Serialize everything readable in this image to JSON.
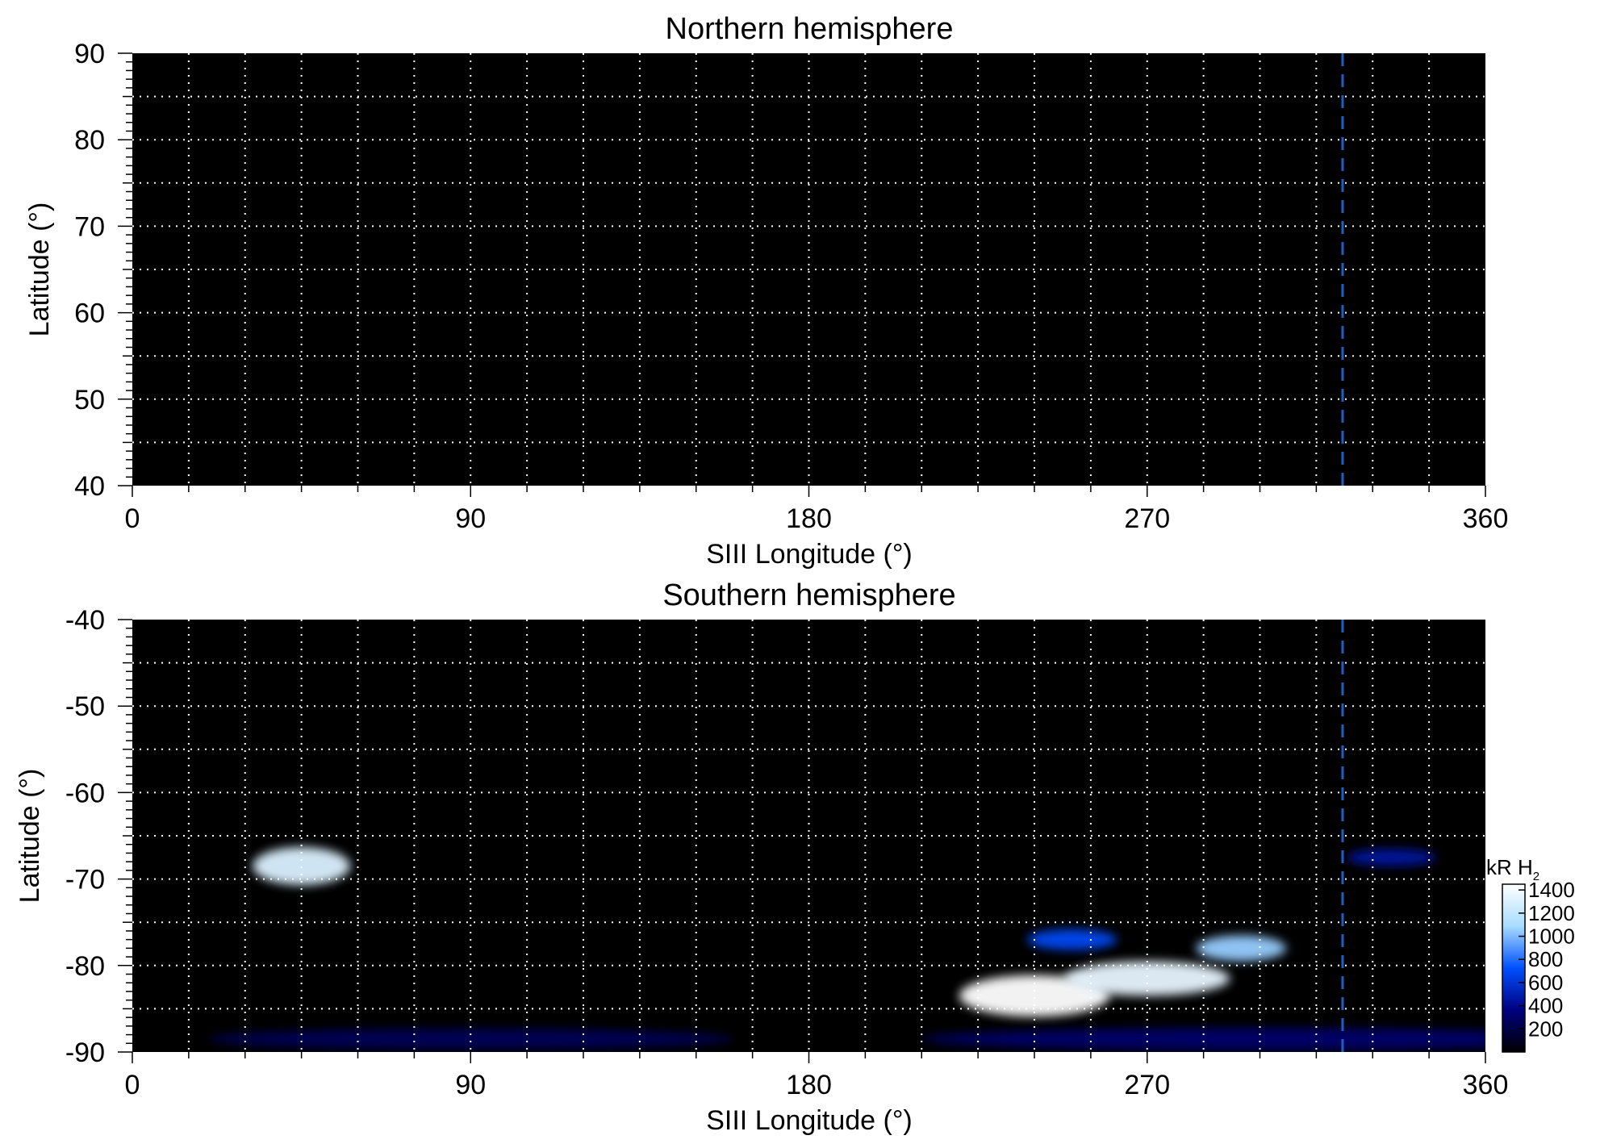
{
  "chart_data": [
    {
      "type": "heatmap",
      "title": "Northern hemisphere",
      "xlabel": "SIII Longitude (°)",
      "ylabel": "Latitude (°)",
      "xlim": [
        0,
        360
      ],
      "ylim": [
        40,
        90
      ],
      "x_ticks": [
        0,
        90,
        180,
        270,
        360
      ],
      "y_ticks": [
        40,
        50,
        60,
        70,
        80,
        90
      ],
      "grid": true,
      "grid_x_step": 15,
      "grid_y_step": 10,
      "reference_line": {
        "longitude": 322,
        "style": "dashed",
        "color": "#1f5fbf"
      },
      "background_color": "#000000",
      "emission_features": []
    },
    {
      "type": "heatmap",
      "title": "Southern hemisphere",
      "xlabel": "SIII Longitude (°)",
      "ylabel": "Latitude (°)",
      "xlim": [
        0,
        360
      ],
      "ylim": [
        -90,
        -40
      ],
      "x_ticks": [
        0,
        90,
        180,
        270,
        360
      ],
      "y_ticks": [
        -90,
        -80,
        -70,
        -60,
        -50,
        -40
      ],
      "grid": true,
      "grid_x_step": 15,
      "grid_y_step": 10,
      "reference_line": {
        "longitude": 322,
        "style": "dashed",
        "color": "#1f5fbf"
      },
      "background_color": "#000000",
      "emission_features": [
        {
          "lon_center": 45,
          "lat_center": -68.5,
          "lon_halfwidth": 13,
          "lat_halfwidth": 2.2,
          "intensity_kR": 1300
        },
        {
          "lon_center": 240,
          "lat_center": -83.5,
          "lon_halfwidth": 20,
          "lat_halfwidth": 2.4,
          "intensity_kR": 1450
        },
        {
          "lon_center": 270,
          "lat_center": -81.5,
          "lon_halfwidth": 22,
          "lat_halfwidth": 2.0,
          "intensity_kR": 1350
        },
        {
          "lon_center": 295,
          "lat_center": -78.0,
          "lon_halfwidth": 12,
          "lat_halfwidth": 1.5,
          "intensity_kR": 1050
        },
        {
          "lon_center": 250,
          "lat_center": -77.0,
          "lon_halfwidth": 12,
          "lat_halfwidth": 1.2,
          "intensity_kR": 700
        },
        {
          "lon_center": 90,
          "lat_center": -88.5,
          "lon_halfwidth": 70,
          "lat_halfwidth": 1.2,
          "intensity_kR": 250
        },
        {
          "lon_center": 300,
          "lat_center": -88.5,
          "lon_halfwidth": 90,
          "lat_halfwidth": 1.3,
          "intensity_kR": 300
        },
        {
          "lon_center": 335,
          "lat_center": -67.5,
          "lon_halfwidth": 12,
          "lat_halfwidth": 1.0,
          "intensity_kR": 450
        }
      ],
      "colorbar": {
        "label": "kR H",
        "label_subscript": "2",
        "range": [
          0,
          1450
        ],
        "ticks": [
          200,
          400,
          600,
          800,
          1000,
          1200,
          1400
        ],
        "colors": [
          "#000000",
          "#000080",
          "#0050ff",
          "#a8dcff",
          "#ffffff"
        ]
      }
    }
  ]
}
